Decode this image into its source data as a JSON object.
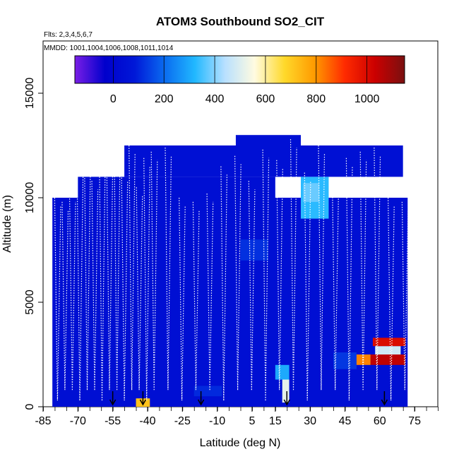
{
  "chart_data": {
    "type": "heatmap",
    "title": "ATOM3 Southbound SO2_CIT",
    "subtitle_flights": "Flts: 2,3,4,5,6,7",
    "subtitle_dates": "MMDD: 1001,1004,1006,1008,1011,1014",
    "xlabel": "Latitude (deg N)",
    "ylabel": "Altitude (m)",
    "xlim": [
      -85,
      85
    ],
    "ylim": [
      0,
      17500
    ],
    "x_ticks": [
      -85,
      -70,
      -55,
      -40,
      -25,
      -10,
      5,
      15,
      30,
      45,
      60,
      75
    ],
    "y_ticks": [
      0,
      5000,
      10000,
      15000
    ],
    "colorbar": {
      "range": [
        -150,
        1150
      ],
      "ticks": [
        0,
        200,
        400,
        600,
        800,
        1000
      ],
      "colors": [
        "#7a1ee6",
        "#0000cc",
        "#0018d8",
        "#0a6cf0",
        "#21b8ff",
        "#b8e0ff",
        "#fffbe0",
        "#ffd92a",
        "#ff9a00",
        "#ff2b00",
        "#cc0000",
        "#7a1010"
      ]
    },
    "blocks": [
      {
        "x0": -81,
        "x1": 72,
        "y0": 0,
        "y1": 10000,
        "v": 40
      },
      {
        "x0": -70,
        "x1": 15,
        "y0": 10000,
        "y1": 11000,
        "v": 40
      },
      {
        "x0": -50,
        "x1": 70,
        "y0": 11000,
        "y1": 12500,
        "v": 45
      },
      {
        "x0": -2,
        "x1": 26,
        "y0": 12500,
        "y1": 13000,
        "v": 45
      },
      {
        "x0": 26,
        "x1": 38,
        "y0": 9000,
        "y1": 11000,
        "v": 330
      },
      {
        "x0": 27,
        "x1": 34,
        "y0": 9800,
        "y1": 10700,
        "v": 380
      },
      {
        "x0": 15,
        "x1": 21,
        "y0": 1300,
        "y1": 2000,
        "v": 300
      },
      {
        "x0": 18,
        "x1": 21,
        "y0": 200,
        "y1": 1300,
        "v": 520
      },
      {
        "x0": -45,
        "x1": -39,
        "y0": 0,
        "y1": 400,
        "v": 720
      },
      {
        "x0": 56,
        "x1": 71,
        "y0": 2000,
        "y1": 2500,
        "v": 1050
      },
      {
        "x0": 58,
        "x1": 69,
        "y0": 2500,
        "y1": 2900,
        "v": 480
      },
      {
        "x0": 48,
        "x1": 56,
        "y0": 2000,
        "y1": 2500,
        "v": 820
      },
      {
        "x0": 57,
        "x1": 71,
        "y0": 2900,
        "y1": 3300,
        "v": 1000
      },
      {
        "x0": 40,
        "x1": 50,
        "y0": 1800,
        "y1": 2600,
        "v": 130
      },
      {
        "x0": -20,
        "x1": -8,
        "y0": 500,
        "y1": 1000,
        "v": 110
      },
      {
        "x0": 0,
        "x1": 12,
        "y0": 7000,
        "y1": 8000,
        "v": 120
      }
    ],
    "markers": [
      -55,
      -42,
      -17,
      20,
      62
    ]
  }
}
